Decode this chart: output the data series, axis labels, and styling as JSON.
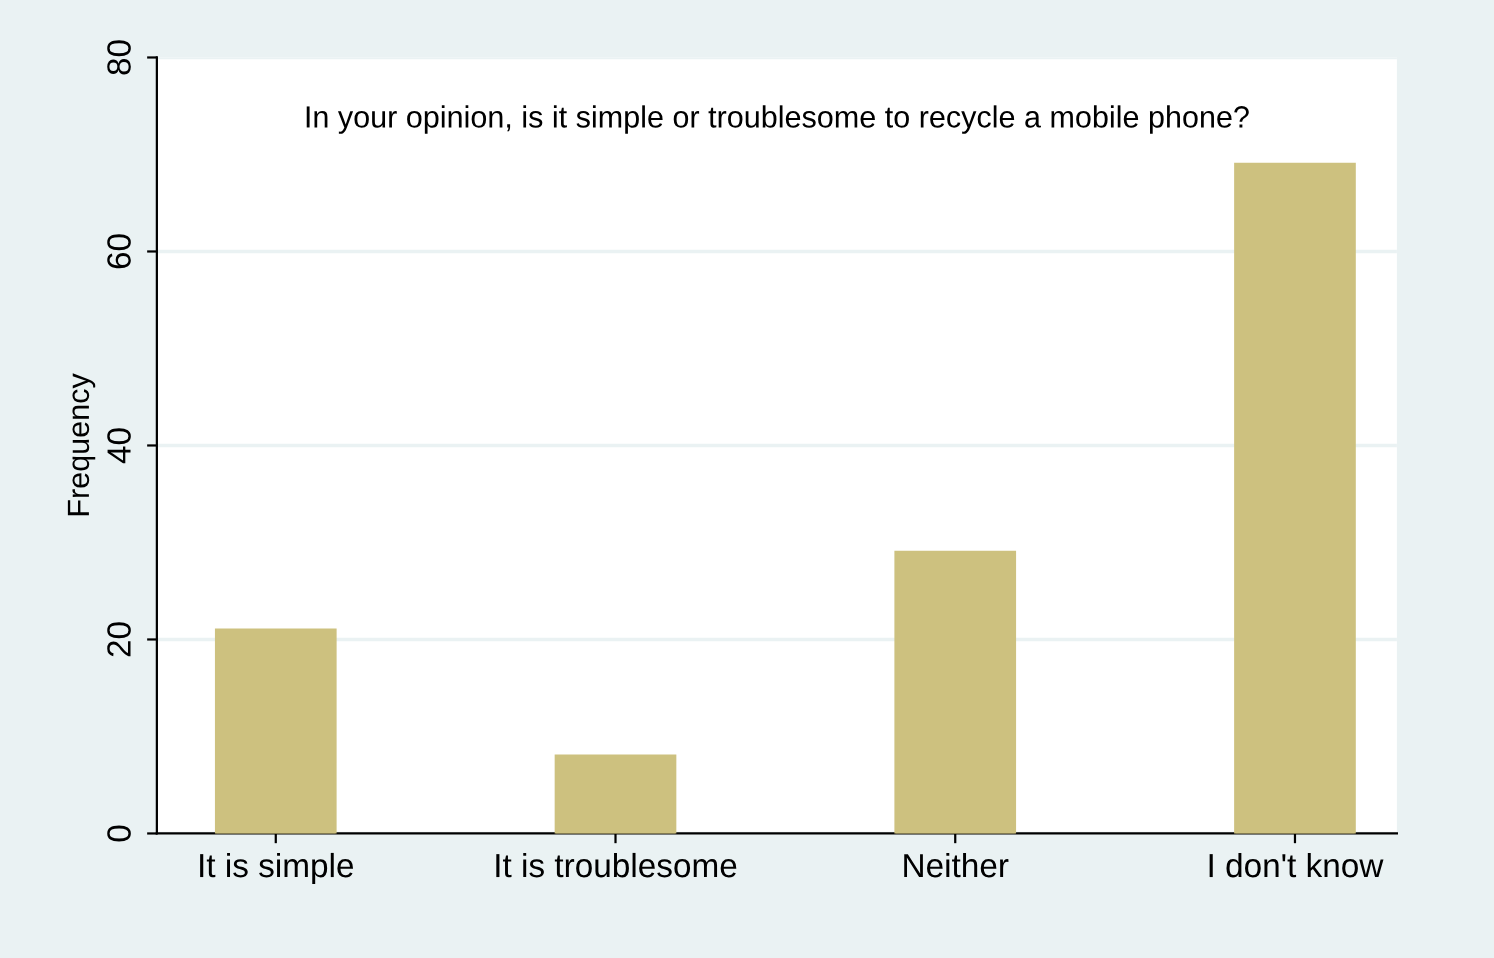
{
  "chart_data": {
    "type": "bar",
    "title": "In your opinion, is it simple or troublesome to recycle a mobile phone?",
    "ylabel": "Frequency",
    "categories": [
      "It is simple",
      "It is troublesome",
      "Neither",
      "I don't know"
    ],
    "values": [
      21,
      8,
      29,
      69
    ],
    "color": "#cdc17f",
    "ylim": [
      0,
      80
    ],
    "yticks": [
      0,
      20,
      40,
      60,
      80
    ],
    "grid": "y"
  }
}
